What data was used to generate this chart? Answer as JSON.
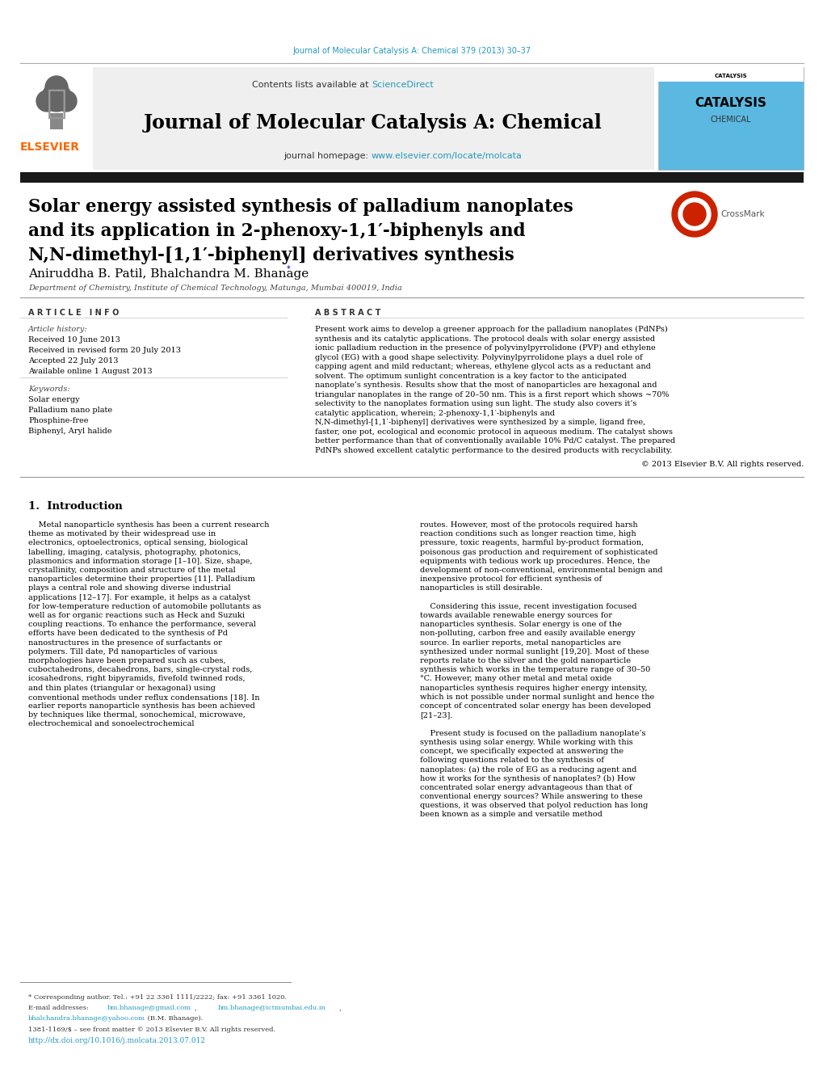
{
  "fig_width": 10.2,
  "fig_height": 13.51,
  "dpi": 100,
  "bg_color": "#ffffff",
  "journal_ref": "Journal of Molecular Catalysis A: Chemical 379 (2013) 30–37",
  "journal_ref_color": "#2299bb",
  "header_bg": "#efefef",
  "journal_title": "Journal of Molecular Catalysis A: Chemical",
  "contents_text": "Contents lists available at ",
  "sciencedirect_text": "ScienceDirect",
  "sciencedirect_color": "#2299bb",
  "homepage_text": "journal homepage: ",
  "homepage_url": "www.elsevier.com/locate/molcata",
  "homepage_url_color": "#2299bb",
  "black_bar_color": "#1a1a1a",
  "paper_title_line1": "Solar energy assisted synthesis of palladium nanoplates",
  "paper_title_line2": "and its application in 2-phenoxy-1,1′-biphenyls and",
  "paper_title_line3": "N,N-dimethyl-[1,1′-biphenyl] derivatives synthesis",
  "authors": "Aniruddha B. Patil, Bhalchandra M. Bhanage",
  "authors_star": "*",
  "affiliation": "Department of Chemistry, Institute of Chemical Technology, Matunga, Mumbai 400019, India",
  "article_info_label": "A R T I C L E   I N F O",
  "abstract_label": "A B S T R A C T",
  "article_history_label": "Article history:",
  "received": "Received 10 June 2013",
  "revised": "Received in revised form 20 July 2013",
  "accepted": "Accepted 22 July 2013",
  "available": "Available online 1 August 2013",
  "keywords_label": "Keywords:",
  "keywords": [
    "Solar energy",
    "Palladium nano plate",
    "Phosphine-free",
    "Biphenyl, Aryl halide"
  ],
  "abstract_text": "Present work aims to develop a greener approach for the palladium nanoplates (PdNPs) synthesis and its catalytic applications. The protocol deals with solar energy assisted ionic palladium reduction in the presence of polyvinylpyrrolidone (PVP) and ethylene glycol (EG) with a good shape selectivity. Polyvinylpyrrolidone plays a duel role of capping agent and mild reductant; whereas, ethylene glycol acts as a reductant and solvent. The optimum sunlight concentration is a key factor to the anticipated nanoplate’s synthesis. Results show that the most of nanoparticles are hexagonal and triangular nanoplates in the range of 20–50 nm. This is a first report which shows ~70% selectivity to the nanoplates formation using sun light. The study also covers it’s catalytic application, wherein; 2-phenoxy-1,1′-biphenyls and N,N-dimethyl-[1,1′-biphenyl] derivatives were synthesized by a simple, ligand free, faster, one pot, ecological and economic protocol in aqueous medium. The catalyst shows better performance than that of conventionally available 10% Pd/C catalyst. The prepared PdNPs showed excellent catalytic performance to the desired products with recyclability.",
  "copyright_text": "© 2013 Elsevier B.V. All rights reserved.",
  "section1_title": "1.  Introduction",
  "intro_col1_para1": "Metal nanoparticle synthesis has been a current research theme as motivated by their widespread use in electronics, optoelectronics, optical sensing, biological labelling, imaging, catalysis, photography, photonics, plasmonics and information storage [1–10]. Size, shape, crystallinity, composition and structure of the metal nanoparticles determine their properties [11]. Palladium plays a central role and showing diverse industrial applications [12–17]. For example, it helps as a catalyst for low-temperature reduction of automobile pollutants as well as for organic reactions such as Heck and Suzuki coupling reactions. To enhance the performance, several efforts have been dedicated to the synthesis of Pd nanostructures in the presence of surfactants or polymers. Till date, Pd nanoparticles of various morphologies have been prepared such as cubes, cuboctahedrons, decahedrons, bars, single-crystal rods, icosahedrons, right bipyramids, fivefold twinned rods, and thin plates (triangular or hexagonal) using conventional methods under reflux condensations [18]. In earlier reports nanoparticle synthesis has been achieved by techniques like thermal, sonochemical, microwave, electrochemical and sonoelectrochemical",
  "intro_col2_para1": "routes. However, most of the protocols required harsh reaction conditions such as longer reaction time, high pressure, toxic reagents, harmful by-product formation, poisonous gas production and requirement of sophisticated equipments with tedious work up procedures. Hence, the development of non-conventional, environmental benign and inexpensive protocol for efficient synthesis of nanoparticles is still desirable.",
  "intro_col2_para2": "Considering this issue, recent investigation focused towards available renewable energy sources for nanoparticles synthesis. Solar energy is one of the non-polluting, carbon free and easily available energy source. In earlier reports, metal nanoparticles are synthesized under normal sunlight [19,20]. Most of these reports relate to the silver and the gold nanoparticle synthesis which works in the temperature range of 30–50 °C. However, many other metal and metal oxide nanoparticles synthesis requires higher energy intensity, which is not possible under normal sunlight and hence the concept of concentrated solar energy has been developed [21–23].",
  "intro_col2_para3": "Present study is focused on the palladium nanoplate’s synthesis using solar energy. While working with this concept, we specifically expected at answering the following questions related to the synthesis of nanoplates: (a) the role of EG as a reducing agent and how it works for the synthesis of nanoplates? (b) How concentrated solar energy advantageous than that of conventional energy sources? While answering to these questions, it was observed that polyol reduction has long been known as a simple and versatile method",
  "footnote_line1": "* Corresponding author. Tel.: +91 22 3361 1111/2222; fax: +91 3361 1020.",
  "footnote_email_prefix": "E-mail addresses: ",
  "footnote_email1": "bm.bhanage@gmail.com",
  "footnote_comma1": ",",
  "footnote_email2_pre": "  ",
  "footnote_email2": "bm.bhanage@ictmumbai.edu.in",
  "footnote_comma2": ",",
  "footnote_email3_pre": "bhalchandra.bhanage@yahoo.com",
  "footnote_email3_post": " (B.M. Bhanage).",
  "footnote_issn": "1381-1169/$ – see front matter © 2013 Elsevier B.V. All rights reserved.",
  "footnote_doi": "http://dx.doi.org/10.1016/j.molcata.2013.07.012",
  "footnote_doi_color": "#2299bb",
  "footnote_email_color": "#2299bb",
  "text_color": "#000000",
  "gray_line_color": "#999999",
  "thin_line_color": "#cccccc"
}
